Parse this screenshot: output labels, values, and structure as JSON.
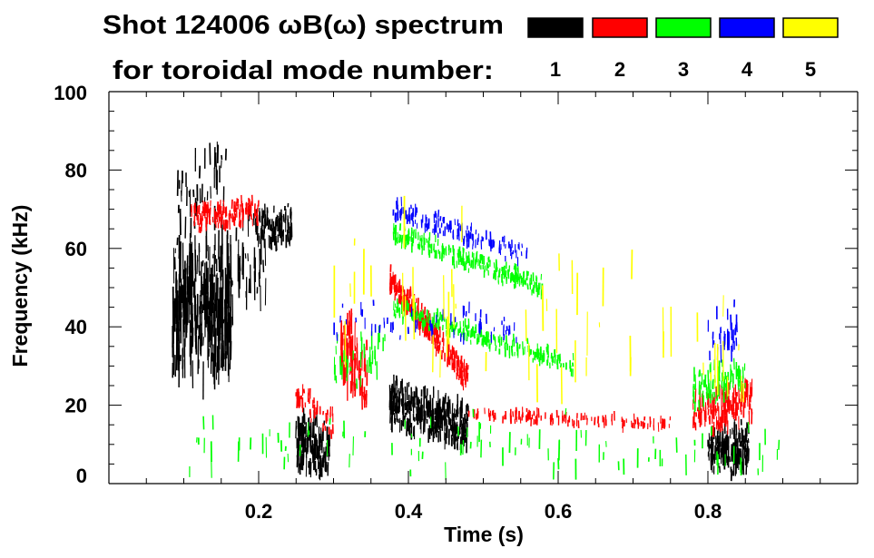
{
  "chart_data": {
    "type": "heatmap",
    "title_line1": "Shot 124006 ωB(ω) spectrum",
    "title_line2": "for toroidal mode number:",
    "xlabel": "Time (s)",
    "ylabel": "Frequency (kHz)",
    "xlim": [
      0,
      1.0
    ],
    "ylim": [
      0,
      100
    ],
    "xticks": [
      0.2,
      0.4,
      0.6,
      0.8
    ],
    "xtick_labels": [
      "0.2",
      "0.4",
      "0.6",
      "0.8"
    ],
    "yticks": [
      0,
      20,
      40,
      60,
      80,
      100
    ],
    "ytick_labels": [
      "0",
      "20",
      "40",
      "60",
      "80",
      "100"
    ],
    "legend": [
      {
        "mode": "1",
        "color": "#000000"
      },
      {
        "mode": "2",
        "color": "#ff0000"
      },
      {
        "mode": "3",
        "color": "#00ff00"
      },
      {
        "mode": "4",
        "color": "#0000ff"
      },
      {
        "mode": "5",
        "color": "#ffff00"
      }
    ],
    "legend_placement": "top-right",
    "features": [
      {
        "mode": 1,
        "t": [
          0.085,
          0.165
        ],
        "f_start": 45,
        "f_end": 45,
        "spread": 20,
        "density": 5
      },
      {
        "mode": 1,
        "t": [
          0.09,
          0.16
        ],
        "f_start": 70,
        "f_end": 80,
        "spread": 12,
        "density": 0.8
      },
      {
        "mode": 1,
        "t": [
          0.17,
          0.21
        ],
        "f_start": 55,
        "f_end": 60,
        "spread": 15,
        "density": 1.2
      },
      {
        "mode": 1,
        "t": [
          0.2,
          0.245
        ],
        "f_start": 64,
        "f_end": 66,
        "spread": 6,
        "density": 2.5
      },
      {
        "mode": 1,
        "t": [
          0.25,
          0.295
        ],
        "f_start": 11,
        "f_end": 8,
        "spread": 8,
        "density": 4
      },
      {
        "mode": 1,
        "t": [
          0.375,
          0.48
        ],
        "f_start": 21,
        "f_end": 14,
        "spread": 7,
        "density": 4
      },
      {
        "mode": 1,
        "t": [
          0.8,
          0.855
        ],
        "f_start": 9,
        "f_end": 9,
        "spread": 7,
        "density": 4
      },
      {
        "mode": 2,
        "t": [
          0.11,
          0.2
        ],
        "f_start": 68,
        "f_end": 69,
        "spread": 4,
        "density": 2
      },
      {
        "mode": 2,
        "t": [
          0.25,
          0.3
        ],
        "f_start": 22,
        "f_end": 16,
        "spread": 4,
        "density": 1.2
      },
      {
        "mode": 2,
        "t": [
          0.31,
          0.345
        ],
        "f_start": 38,
        "f_end": 26,
        "spread": 12,
        "density": 3
      },
      {
        "mode": 2,
        "t": [
          0.375,
          0.48
        ],
        "f_start": 52,
        "f_end": 27,
        "spread": 4,
        "density": 3
      },
      {
        "mode": 2,
        "t": [
          0.48,
          0.75
        ],
        "f_start": 18,
        "f_end": 15,
        "spread": 2,
        "density": 0.6
      },
      {
        "mode": 2,
        "t": [
          0.78,
          0.86
        ],
        "f_start": 17,
        "f_end": 22,
        "spread": 6,
        "density": 2.5
      },
      {
        "mode": 3,
        "t": [
          0.38,
          0.58
        ],
        "f_start": 64,
        "f_end": 50,
        "spread": 3,
        "density": 1.5
      },
      {
        "mode": 3,
        "t": [
          0.38,
          0.62
        ],
        "f_start": 45,
        "f_end": 30,
        "spread": 3,
        "density": 1.2
      },
      {
        "mode": 3,
        "t": [
          0.3,
          0.37
        ],
        "f_start": 30,
        "f_end": 35,
        "spread": 8,
        "density": 0.6
      },
      {
        "mode": 3,
        "t": [
          0.78,
          0.85
        ],
        "f_start": 24,
        "f_end": 28,
        "spread": 6,
        "density": 1.5
      },
      {
        "mode": 3,
        "t": [
          0.1,
          0.9
        ],
        "f_start": 10,
        "f_end": 10,
        "spread": 9,
        "density": 0.15
      },
      {
        "mode": 4,
        "t": [
          0.38,
          0.56
        ],
        "f_start": 70,
        "f_end": 58,
        "spread": 3,
        "density": 1
      },
      {
        "mode": 4,
        "t": [
          0.3,
          0.55
        ],
        "f_start": 42,
        "f_end": 40,
        "spread": 5,
        "density": 0.3
      },
      {
        "mode": 4,
        "t": [
          0.8,
          0.84
        ],
        "f_start": 35,
        "f_end": 40,
        "spread": 8,
        "density": 1
      },
      {
        "mode": 5,
        "t": [
          0.3,
          0.85
        ],
        "f_start": 50,
        "f_end": 30,
        "spread": 25,
        "density": 0.12
      }
    ]
  }
}
